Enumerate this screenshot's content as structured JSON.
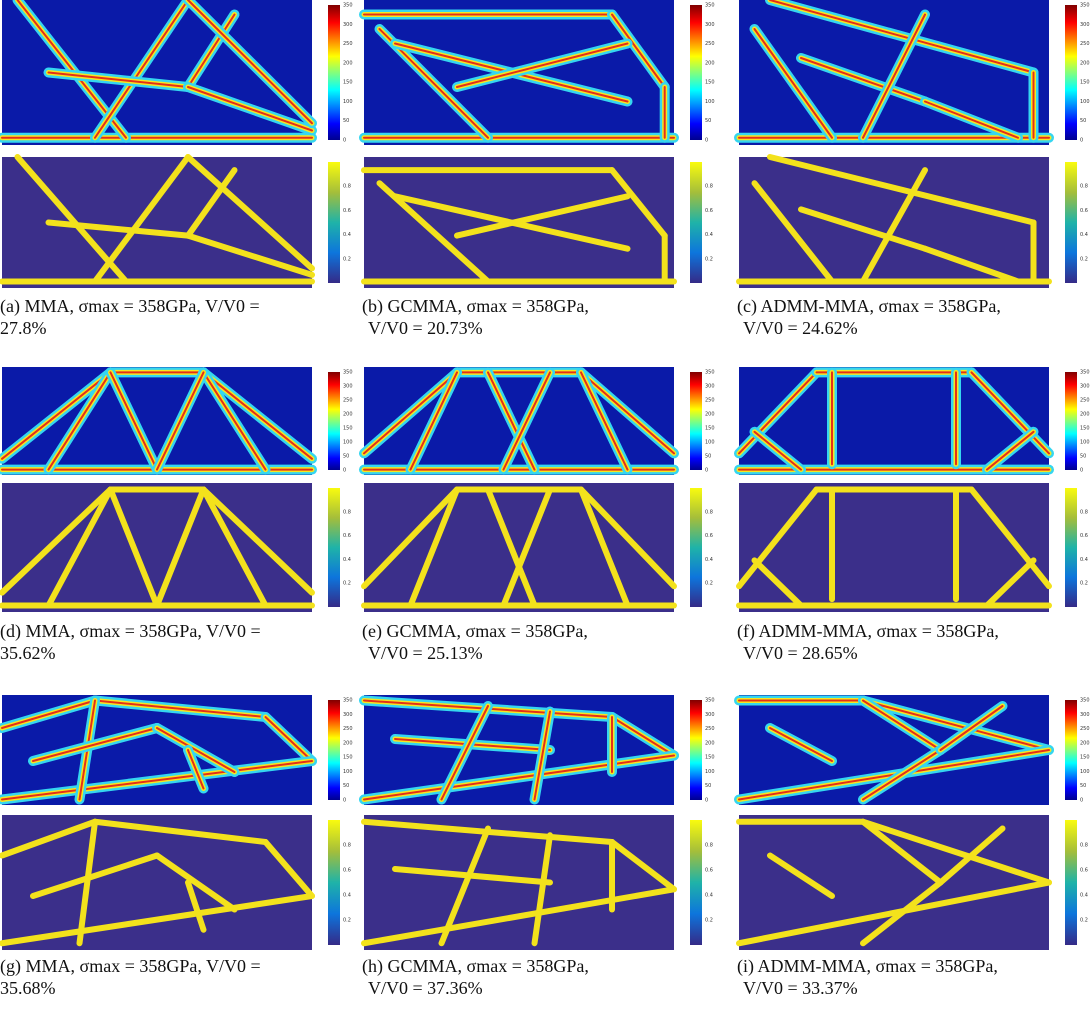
{
  "panels": [
    {
      "caption_line1": "(a) MMA, σmax = 358GPa, V/V0 =",
      "caption_line2": "27.8%"
    },
    {
      "caption_line1": "(b) GCMMA, σmax = 358GPa,",
      "caption_line2": "V/V0 = 20.73%"
    },
    {
      "caption_line1": "(c) ADMM-MMA, σmax = 358GPa,",
      "caption_line2": "V/V0 = 24.62%"
    },
    {
      "caption_line1": "(d) MMA, σmax = 358GPa, V/V0 =",
      "caption_line2": "35.62%"
    },
    {
      "caption_line1": "(e) GCMMA, σmax = 358GPa,",
      "caption_line2": "V/V0 = 25.13%"
    },
    {
      "caption_line1": "(f) ADMM-MMA, σmax = 358GPa,",
      "caption_line2": "V/V0 = 28.65%"
    },
    {
      "caption_line1": "(g) MMA, σmax = 358GPa, V/V0 =",
      "caption_line2": "35.68%"
    },
    {
      "caption_line1": "(h) GCMMA, σmax = 358GPa,",
      "caption_line2": "V/V0 = 37.36%"
    },
    {
      "caption_line1": "(i) ADMM-MMA, σmax = 358GPa,",
      "caption_line2": "V/V0 = 33.37%"
    }
  ],
  "colorbar_ticks": {
    "stress": [
      "350",
      "300",
      "250",
      "200",
      "150",
      "100",
      "50",
      "0"
    ],
    "density": [
      "0.8",
      "0.6",
      "0.4",
      "0.2"
    ]
  }
}
